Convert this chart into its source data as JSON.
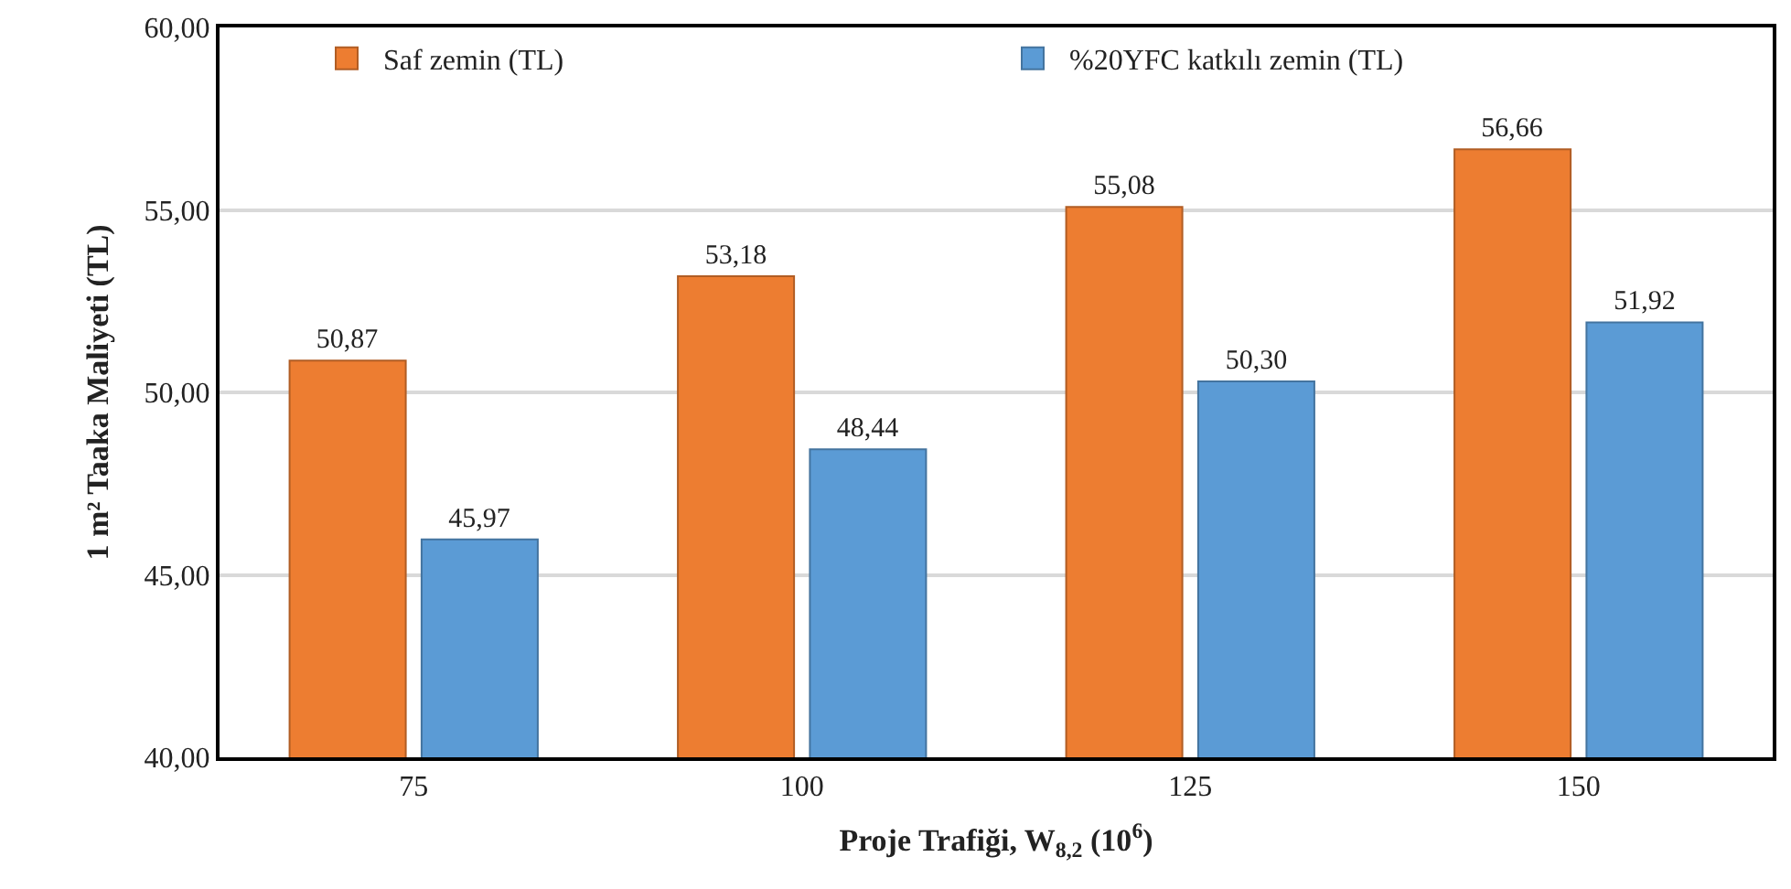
{
  "chart_data": {
    "type": "bar",
    "xlabel": "Proje Trafiği, W$_{8,2}$ (10$^{6}$)",
    "ylabel": "1 m² Taaka Maliyeti (TL)",
    "categories": [
      "75",
      "100",
      "125",
      "150"
    ],
    "series": [
      {
        "name": "Saf zemin (TL)",
        "color": "#ed7d31",
        "values": [
          50.87,
          53.18,
          55.08,
          56.66
        ],
        "value_labels": [
          "50,87",
          "53,18",
          "55,08",
          "56,66"
        ]
      },
      {
        "name": "%20YFC katkılı zemin (TL)",
        "color": "#5b9bd5",
        "values": [
          45.97,
          48.44,
          50.3,
          51.92
        ],
        "value_labels": [
          "45,97",
          "48,44",
          "50,30",
          "51,92"
        ]
      }
    ],
    "ylim": [
      40,
      60
    ],
    "yticks": [
      {
        "value": 40,
        "label": "40,00"
      },
      {
        "value": 45,
        "label": "45,00"
      },
      {
        "value": 50,
        "label": "50,00"
      },
      {
        "value": 55,
        "label": "55,00"
      },
      {
        "value": 60,
        "label": "60,00"
      }
    ],
    "grid": "y",
    "legend": "top"
  }
}
